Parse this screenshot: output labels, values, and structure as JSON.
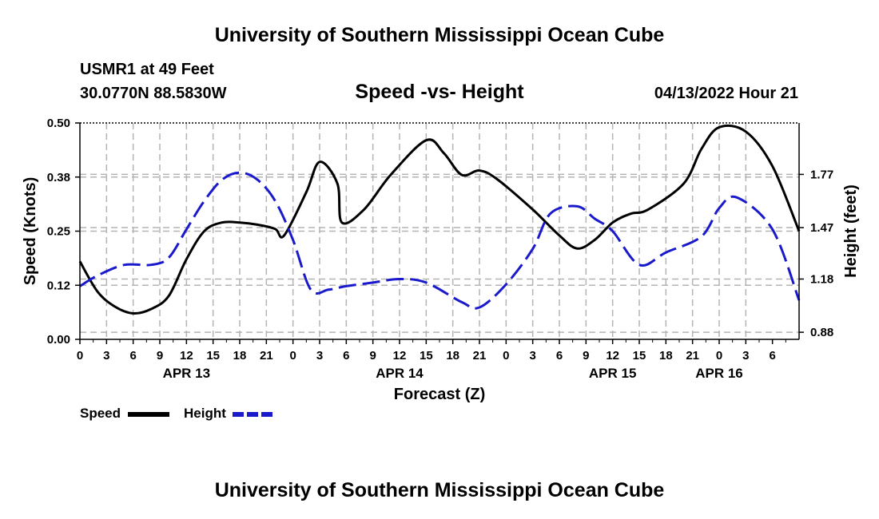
{
  "header": {
    "title": "University of Southern Mississippi Ocean Cube",
    "station": "USMR1 at 49 Feet",
    "coords": "30.0770N  88.5830W",
    "subtitle": "Speed -vs- Height",
    "datetime": "04/13/2022 Hour 21"
  },
  "footer": {
    "title": "University of Southern Mississippi Ocean Cube"
  },
  "legend": {
    "speed_label": "Speed",
    "height_label": "Height"
  },
  "colors": {
    "speed": "#000000",
    "height": "#1a1acc",
    "grid": "#b4b4b4"
  },
  "chart_data": {
    "type": "line",
    "title": "Speed -vs- Height",
    "xlabel": "Forecast (Z)",
    "ylabel": "Speed (Knots)",
    "y2label": "Height (feet)",
    "x_hours_range": [
      0,
      81
    ],
    "ylim": [
      0,
      0.5
    ],
    "y2lim": [
      0.84,
      2.06
    ],
    "yticks": [
      0,
      0.125,
      0.25,
      0.375,
      0.5
    ],
    "ytick_labels": [
      "0.00",
      "0.12",
      "0.25",
      "0.38",
      "0.50"
    ],
    "y2ticks": [
      0.88,
      1.18,
      1.47,
      1.77
    ],
    "y2tick_labels": [
      "0.88",
      "1.18",
      "1.47",
      "1.77"
    ],
    "xtick_labels": [
      "0",
      "3",
      "6",
      "9",
      "12",
      "15",
      "18",
      "21",
      "0",
      "3",
      "6",
      "9",
      "12",
      "15",
      "18",
      "21",
      "0",
      "3",
      "6",
      "9",
      "12",
      "15",
      "18",
      "21",
      "0",
      "3",
      "6"
    ],
    "date_labels": [
      {
        "label": "APR 13",
        "hour": 12
      },
      {
        "label": "APR 14",
        "hour": 36
      },
      {
        "label": "APR 15",
        "hour": 60
      },
      {
        "label": "APR 16",
        "hour": 72
      }
    ],
    "series": [
      {
        "name": "Speed",
        "axis": "left",
        "style": "solid",
        "hours": [
          0,
          2,
          4,
          6,
          8,
          10,
          12,
          14,
          16,
          18,
          20,
          22,
          23,
          25.5,
          27,
          29,
          29.5,
          32,
          35,
          39,
          41,
          43,
          45,
          47,
          51,
          54,
          56,
          58,
          60,
          62,
          64,
          68,
          70,
          72,
          75,
          78,
          81
        ],
        "values": [
          0.18,
          0.11,
          0.075,
          0.06,
          0.07,
          0.1,
          0.185,
          0.25,
          0.27,
          0.27,
          0.265,
          0.255,
          0.24,
          0.34,
          0.41,
          0.36,
          0.27,
          0.3,
          0.38,
          0.46,
          0.43,
          0.38,
          0.39,
          0.37,
          0.3,
          0.24,
          0.21,
          0.23,
          0.27,
          0.29,
          0.3,
          0.36,
          0.44,
          0.49,
          0.48,
          0.4,
          0.25
        ]
      },
      {
        "name": "Height",
        "axis": "right",
        "style": "dashed",
        "hours": [
          0,
          2,
          5,
          8,
          10,
          12,
          14,
          16,
          18,
          20,
          22,
          24,
          26,
          28,
          30,
          33,
          36,
          39,
          43,
          45,
          48,
          51,
          53,
          56,
          58,
          60,
          63,
          66,
          70,
          72,
          74,
          78,
          81
        ],
        "values": [
          1.14,
          1.2,
          1.26,
          1.26,
          1.3,
          1.46,
          1.62,
          1.74,
          1.78,
          1.74,
          1.62,
          1.4,
          1.12,
          1.12,
          1.14,
          1.16,
          1.18,
          1.16,
          1.05,
          1.02,
          1.15,
          1.35,
          1.55,
          1.59,
          1.52,
          1.45,
          1.26,
          1.33,
          1.42,
          1.58,
          1.64,
          1.46,
          1.06
        ]
      }
    ]
  }
}
